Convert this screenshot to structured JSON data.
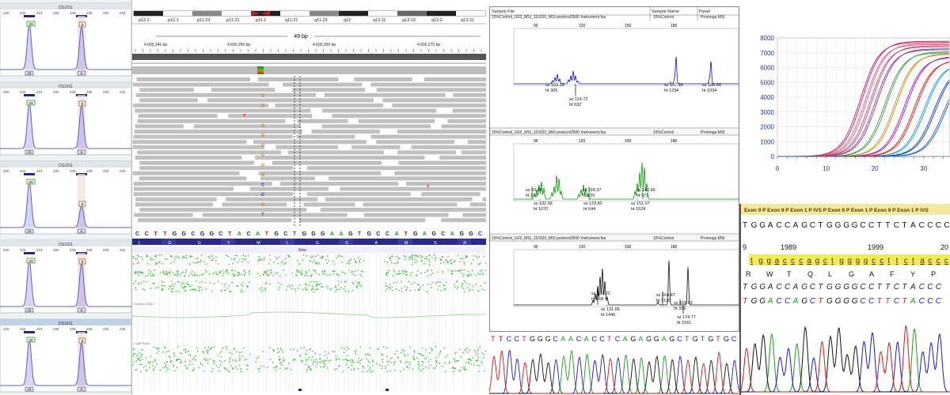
{
  "colors": {
    "peak_blue": "#5a5fd0",
    "igv_read": "#c0c0c0",
    "scatter_green": "#2fbf2f",
    "electro_blue": "#1010c0",
    "electro_green": "#0a9a0a",
    "base_A": "#1aa01a",
    "base_C": "#1a1ad0",
    "base_G": "#111111",
    "base_T": "#d01a1a"
  },
  "fragment_panel": {
    "header": "DS1911",
    "ticks": [
      "220",
      "222",
      "224",
      "226",
      "228",
      "230",
      "232",
      "234"
    ],
    "peak_tags": [
      "23",
      "8",
      "23",
      "8",
      "23",
      "9",
      "23",
      "8",
      "22",
      "8",
      "23",
      "8"
    ],
    "bin_tags": [
      "23",
      "8"
    ]
  },
  "igv": {
    "cytobands": [
      "p12.2",
      "p12.1",
      "p11.23",
      "p11.21",
      "p11.1",
      "q11.21",
      "q11.23",
      "q12",
      "q13.11",
      "q13.13",
      "q13.2",
      "q13.31"
    ],
    "span": "49 bp",
    "coords": [
      "4,600,240 bp",
      "4,600,250 bp",
      "4,600,260 bp",
      "4,600,270 bp"
    ],
    "seq": "CCTTGGCGGCTACATGCTGGGAAGTGCCATGAGCAGGC",
    "aa": [
      "L",
      "G",
      "G",
      "Y",
      "M",
      "L",
      "G",
      "S",
      "A",
      "M",
      "S",
      "R"
    ],
    "variant_bases": [
      "G",
      "G",
      "T",
      "G",
      "G",
      "G",
      "G",
      "G",
      "G",
      "C",
      "C",
      "G",
      "T"
    ],
    "track_title": "Raw",
    "track_labels": [
      "Signal",
      "Position Ratio",
      "LogR Ratio"
    ]
  },
  "msi": {
    "header_cols": [
      "Sample File",
      "Sample Name",
      "Panel"
    ],
    "row_title": "15%Control_G02_MSI_110320_MSI protocol3500 Instrument.fsa",
    "sample": "15%Control",
    "panel": "Promega MSI",
    "axis": [
      "90",
      "120",
      "150",
      "180"
    ],
    "panel1_peaks": [
      {
        "sz": "sz 103.19",
        "ht": "ht 305"
      },
      {
        "sz": "sz 114.72",
        "ht": "ht 632"
      },
      {
        "sz": "sz 167.64",
        "ht": "ht 1294"
      },
      {
        "sz": "sz 186.64",
        "ht": "ht 1034"
      }
    ],
    "panel2_peaks": [
      {
        "sz": "sz 93.95",
        "ht": "ht 372"
      },
      {
        "sz": "sz 102.68",
        "ht": "ht 1070"
      },
      {
        "sz": "sz 118.37",
        "ht": "ht 225"
      },
      {
        "sz": "sz 123.82",
        "ht": "ht 644"
      },
      {
        "sz": "sz 142.66",
        "ht": "ht 571"
      },
      {
        "sz": "sz 151.07",
        "ht": "ht 1624"
      }
    ],
    "panel3_peaks": [
      {
        "sz": "sz 122.22",
        "ht": "ht 468"
      },
      {
        "sz": "sz 131.65",
        "ht": "ht 1446"
      },
      {
        "sz": "sz 164.47",
        "ht": "ht 2126"
      },
      {
        "sz": "sz 169.63",
        "ht": "ht 316"
      },
      {
        "sz": "sz 174.77",
        "ht": "ht 1561"
      }
    ],
    "chrom_seq": "TTCCTGGGCAACACCTCAGAGGAGCTGTGTGC"
  },
  "chart_data": {
    "type": "line",
    "title": "",
    "xlabel": "",
    "ylabel": "",
    "xlim": [
      0,
      40
    ],
    "ylim": [
      0,
      8000
    ],
    "x_ticks": [
      "0",
      "10",
      "20",
      "30"
    ],
    "y_ticks": [
      "0",
      "1000",
      "2000",
      "3000",
      "4000",
      "5000",
      "6000",
      "7000",
      "8000"
    ],
    "grid": true,
    "series": [
      {
        "color": "#d02060",
        "values": {
          "midpoint": 17,
          "plateau": 7700
        }
      },
      {
        "color": "#e0608a",
        "values": {
          "midpoint": 18,
          "plateau": 7550
        }
      },
      {
        "color": "#c05070",
        "values": {
          "midpoint": 19,
          "plateau": 7400
        }
      },
      {
        "color": "#8a3aa0",
        "values": {
          "midpoint": 20,
          "plateau": 7200
        }
      },
      {
        "color": "#3aa050",
        "values": {
          "midpoint": 22,
          "plateau": 7000
        }
      },
      {
        "color": "#d09020",
        "values": {
          "midpoint": 24,
          "plateau": 6900
        }
      },
      {
        "color": "#a020c0",
        "values": {
          "midpoint": 26,
          "plateau": 6700
        }
      },
      {
        "color": "#e02020",
        "values": {
          "midpoint": 28,
          "plateau": 6500
        }
      },
      {
        "color": "#20a0e0",
        "values": {
          "midpoint": 30,
          "plateau": 6300
        }
      },
      {
        "color": "#1040d0",
        "values": {
          "midpoint": 32,
          "plateau": 6100
        }
      },
      {
        "color": "#2060c0",
        "values": {
          "midpoint": 34,
          "plateau": 5900
        }
      }
    ]
  },
  "sanger": {
    "banner": "Exon 9 P Exon 9 P Exon 1 P IVS P Exon 9 P Exon 1 P Exon 9 P Exon 1 P IVS",
    "seq": "TGGACCAGCTGGGGCCTTCTACCCC",
    "numbers": [
      "1989",
      "1999",
      "20"
    ],
    "left_number": "9",
    "hl_seq": "tggacccagctggggccttctaccc",
    "aa": [
      "R",
      "W",
      "T",
      "Q",
      "L",
      "G",
      "A",
      "F",
      "Y",
      "P"
    ],
    "call_seq": "TGGACCAGCTGGGGCCTTCTACCC"
  }
}
